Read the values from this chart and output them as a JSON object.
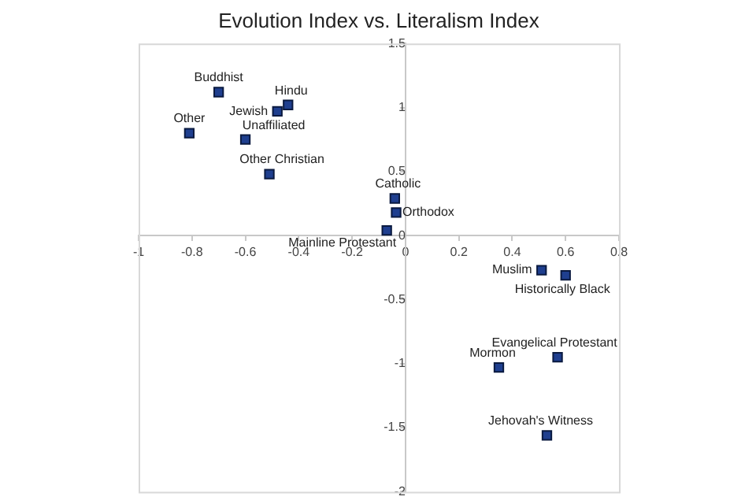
{
  "chart_data": {
    "type": "scatter",
    "title": "Evolution Index vs. Literalism Index",
    "x": [
      -0.7,
      -0.44,
      -0.48,
      -0.81,
      -0.6,
      -0.51,
      -0.04,
      -0.035,
      -0.07,
      0.51,
      0.6,
      0.57,
      0.35,
      0.53
    ],
    "series": [
      {
        "color": "#1f3f8f",
        "values": [
          1.12,
          1.02,
          0.97,
          0.8,
          0.75,
          0.48,
          0.29,
          0.18,
          0.04,
          -0.27,
          -0.31,
          -0.95,
          -1.03,
          -1.56
        ]
      }
    ],
    "annotations": [
      {
        "text": "Buddhist",
        "x": -0.7,
        "y": 1.12
      },
      {
        "text": "Hindu",
        "x": -0.44,
        "y": 1.02
      },
      {
        "text": "Jewish",
        "x": -0.48,
        "y": 0.97
      },
      {
        "text": "Other",
        "x": -0.81,
        "y": 0.8
      },
      {
        "text": "Unaffiliated",
        "x": -0.6,
        "y": 0.75
      },
      {
        "text": "Other Christian",
        "x": -0.51,
        "y": 0.48
      },
      {
        "text": "Catholic",
        "x": -0.04,
        "y": 0.29
      },
      {
        "text": "Orthodox",
        "x": -0.035,
        "y": 0.18
      },
      {
        "text": "Mainline Protestant",
        "x": -0.07,
        "y": 0.04
      },
      {
        "text": "Muslim",
        "x": 0.51,
        "y": -0.27
      },
      {
        "text": "Historically Black",
        "x": 0.6,
        "y": -0.31
      },
      {
        "text": "Evangelical Protestant",
        "x": 0.57,
        "y": -0.95
      },
      {
        "text": "Mormon",
        "x": 0.35,
        "y": -1.03
      },
      {
        "text": "Jehovah's Witness",
        "x": 0.53,
        "y": -1.56
      }
    ],
    "xlim": [
      -1,
      0.8
    ],
    "xticks": [
      -1,
      -0.8,
      -0.6,
      -0.4,
      -0.2,
      0,
      0.2,
      0.4,
      0.6,
      0.8
    ],
    "ylim": [
      -2,
      1.5
    ],
    "yticks": [
      -2,
      -1.5,
      -1,
      -0.5,
      0,
      0.5,
      1,
      1.5
    ],
    "grid": false,
    "legend": false,
    "marker": "square"
  }
}
